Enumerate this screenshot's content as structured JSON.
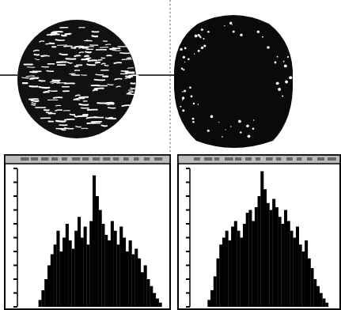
{
  "chart_data": [
    {
      "type": "histogram",
      "color": "#000000",
      "bins": [
        0,
        2,
        4,
        6,
        8,
        10,
        12,
        14,
        16,
        18,
        20,
        22,
        24,
        26,
        28,
        30,
        32,
        34,
        36,
        38,
        40,
        42,
        44,
        46,
        48,
        50,
        52,
        54,
        56,
        58,
        60,
        62,
        64,
        66,
        68,
        70,
        72,
        74,
        76,
        78,
        80,
        82,
        84,
        86,
        88,
        90,
        92,
        94,
        96,
        98,
        100
      ],
      "values": [
        0,
        0,
        0,
        0,
        0,
        0,
        0,
        5,
        12,
        20,
        30,
        38,
        45,
        55,
        40,
        50,
        60,
        48,
        42,
        55,
        65,
        50,
        58,
        45,
        62,
        95,
        80,
        70,
        60,
        52,
        48,
        62,
        55,
        45,
        58,
        50,
        40,
        48,
        38,
        42,
        35,
        25,
        30,
        20,
        15,
        10,
        6,
        3,
        0,
        0
      ],
      "xlim": [
        0,
        100
      ],
      "ylim": [
        0,
        100
      ],
      "yticks": [
        0,
        10,
        20,
        30,
        40,
        50,
        60,
        70,
        80,
        90,
        100
      ],
      "tick_labels": false
    },
    {
      "type": "histogram",
      "color": "#000000",
      "bins": [
        0,
        2,
        4,
        6,
        8,
        10,
        12,
        14,
        16,
        18,
        20,
        22,
        24,
        26,
        28,
        30,
        32,
        34,
        36,
        38,
        40,
        42,
        44,
        46,
        48,
        50,
        52,
        54,
        56,
        58,
        60,
        62,
        64,
        66,
        68,
        70,
        72,
        74,
        76,
        78,
        80,
        82,
        84,
        86,
        88,
        90,
        92,
        94,
        96,
        98,
        100
      ],
      "values": [
        0,
        0,
        0,
        0,
        0,
        0,
        5,
        12,
        22,
        35,
        45,
        50,
        55,
        48,
        58,
        62,
        55,
        50,
        60,
        68,
        70,
        62,
        72,
        80,
        98,
        85,
        75,
        70,
        78,
        72,
        65,
        60,
        70,
        62,
        55,
        50,
        58,
        45,
        40,
        48,
        35,
        28,
        20,
        15,
        10,
        6,
        3,
        0,
        0,
        0
      ],
      "xlim": [
        0,
        100
      ],
      "ylim": [
        0,
        100
      ],
      "yticks": [
        0,
        10,
        20,
        30,
        40,
        50,
        60,
        70,
        80,
        90,
        100
      ],
      "tick_labels": false
    }
  ]
}
